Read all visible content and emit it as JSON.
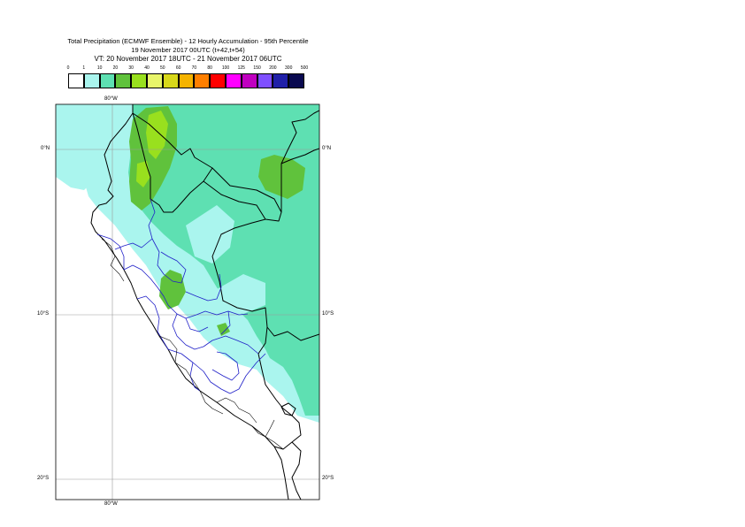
{
  "title": {
    "line1": "Total Precipitation (ECMWF Ensemble) - 12 Hourly Accumulation - 95th Percentile",
    "line2": "19 November 2017 00UTC (t+42,t+54)",
    "line3": "VT: 20 November 2017 18UTC - 21 November 2017 06UTC"
  },
  "legend": {
    "thresholds": [
      "0",
      "1",
      "10",
      "20",
      "30",
      "40",
      "50",
      "60",
      "70",
      "80",
      "100",
      "125",
      "150",
      "200",
      "300",
      "500"
    ],
    "colors": [
      "#ffffff",
      "#aaf5ee",
      "#5ee0b2",
      "#60c23c",
      "#99e01e",
      "#e8f56a",
      "#d8d81a",
      "#f5b300",
      "#ff7f00",
      "#ff0000",
      "#ff00ff",
      "#c000c0",
      "#7f4fff",
      "#2020a8",
      "#0a0a50"
    ]
  },
  "map": {
    "lon_label_top": "80°W",
    "lon_label_bottom": "80°W",
    "lat_left": [
      "0°N",
      "10°S",
      "20°S"
    ],
    "lat_right": [
      "0°N",
      "10°S",
      "20°S"
    ]
  }
}
